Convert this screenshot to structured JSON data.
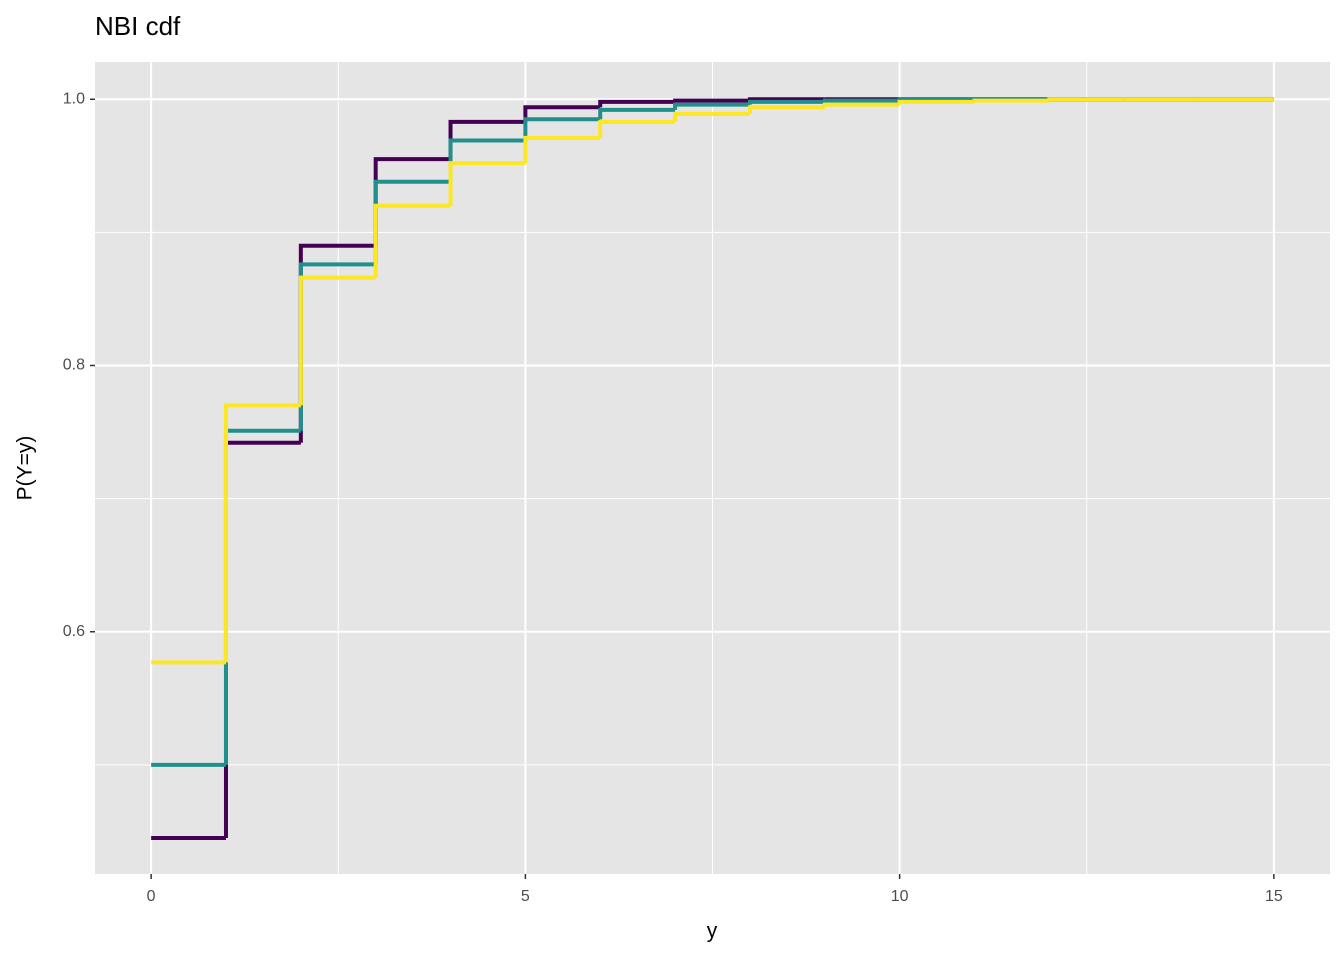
{
  "chart_data": {
    "type": "step",
    "title": "NBI cdf",
    "x_label": "y",
    "y_label": "P(Y=y)",
    "x": [
      0,
      1,
      2,
      3,
      4,
      5,
      6,
      7,
      8,
      9,
      10,
      11,
      12,
      13,
      14,
      15
    ],
    "series": [
      {
        "color": "#440154",
        "values": [
          0.445,
          0.742,
          0.89,
          0.955,
          0.983,
          0.994,
          0.998,
          0.999,
          1.0,
          1.0,
          1.0,
          1.0,
          1.0,
          1.0,
          1.0,
          1.0
        ]
      },
      {
        "color": "#21908C",
        "values": [
          0.5,
          0.751,
          0.876,
          0.938,
          0.969,
          0.985,
          0.992,
          0.996,
          0.998,
          0.999,
          1.0,
          1.0,
          1.0,
          1.0,
          1.0,
          1.0
        ]
      },
      {
        "color": "#FDE725",
        "values": [
          0.577,
          0.77,
          0.866,
          0.92,
          0.952,
          0.971,
          0.983,
          0.989,
          0.994,
          0.996,
          0.998,
          0.999,
          1.0,
          1.0,
          1.0,
          1.0
        ]
      }
    ],
    "xlim": [
      -0.75,
      15.75
    ],
    "ylim": [
      0.418,
      1.028
    ],
    "xticks": [
      0,
      5,
      10,
      15
    ],
    "yticks": [
      0.6,
      0.8,
      {
        "value": 1.0,
        "label": "1.0"
      }
    ],
    "grid": true
  }
}
